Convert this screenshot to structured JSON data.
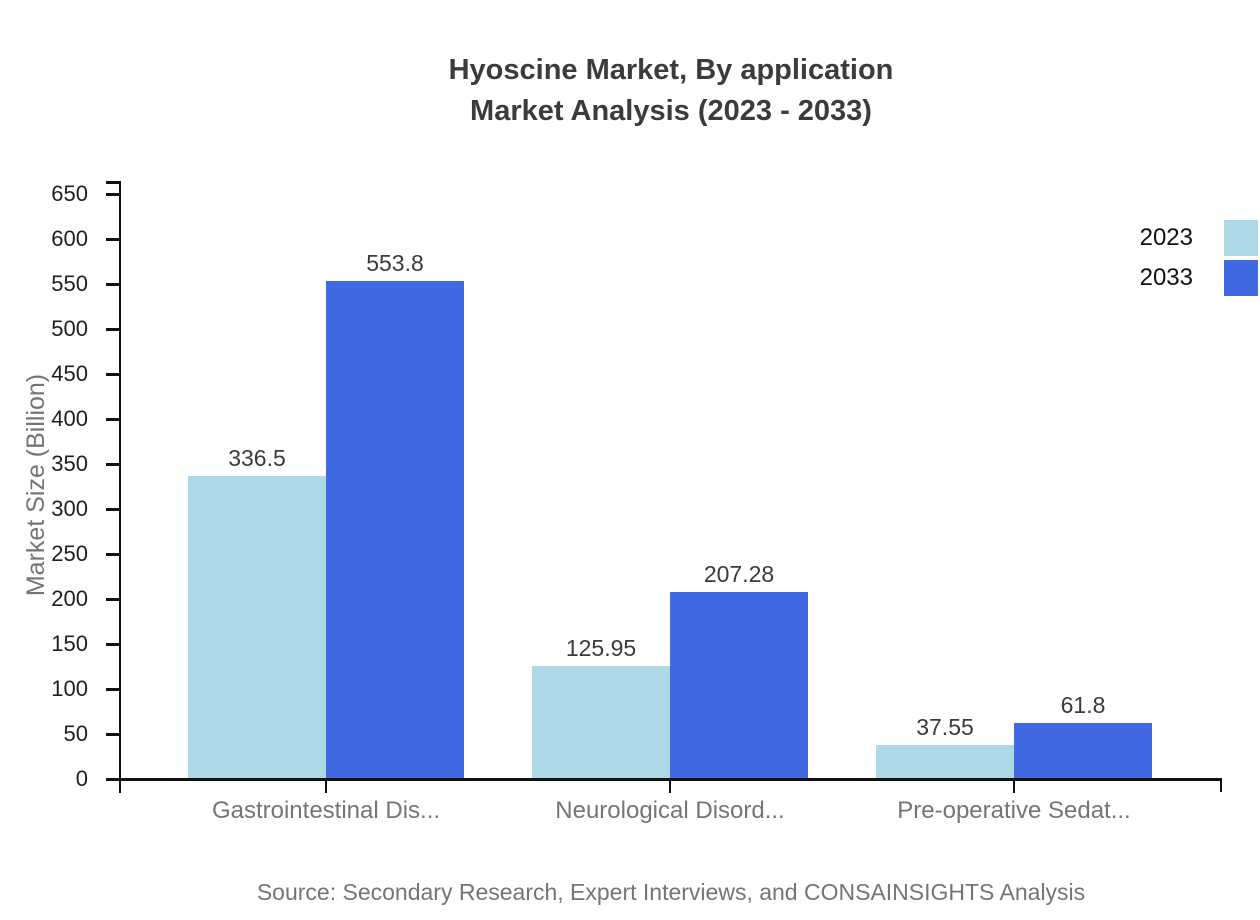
{
  "title": {
    "line1": "Hyoscine Market, By application",
    "line2": "Market Analysis (2023 - 2033)"
  },
  "source": "Source: Secondary Research, Expert Interviews, and CONSAINSIGHTS Analysis",
  "chart_data": {
    "type": "bar",
    "title": "Hyoscine Market, By application Market Analysis (2023 - 2033)",
    "categories": [
      "Gastrointestinal Dis...",
      "Neurological Disord...",
      "Pre-operative Sedat..."
    ],
    "series": [
      {
        "name": "2023",
        "color": "#ADD8E6",
        "values": [
          336.5,
          125.95,
          37.55
        ]
      },
      {
        "name": "2033",
        "color": "#4169E1",
        "values": [
          553.8,
          207.28,
          61.8
        ]
      }
    ],
    "value_labels": [
      [
        "336.5",
        "125.95",
        "37.55"
      ],
      [
        "553.8",
        "207.28",
        "61.8"
      ]
    ],
    "xlabel": "",
    "ylabel": "Market Size (Billion)",
    "ylim": [
      0,
      650
    ],
    "yticks": [
      0,
      50,
      100,
      150,
      200,
      250,
      300,
      350,
      400,
      450,
      500,
      550,
      600,
      650
    ],
    "legend_position": "top-right",
    "grid": false,
    "bar_value_labels": true
  },
  "colors": {
    "background": "#ffffff",
    "title": "#3b3b3b",
    "axis": "#111111",
    "tick_label": "#1f1f1f",
    "category_label": "#757575",
    "value_label": "#3b3b3b",
    "muted_text": "#757575",
    "series_2023": "#ADD8E6",
    "series_2033": "#4169E1"
  }
}
